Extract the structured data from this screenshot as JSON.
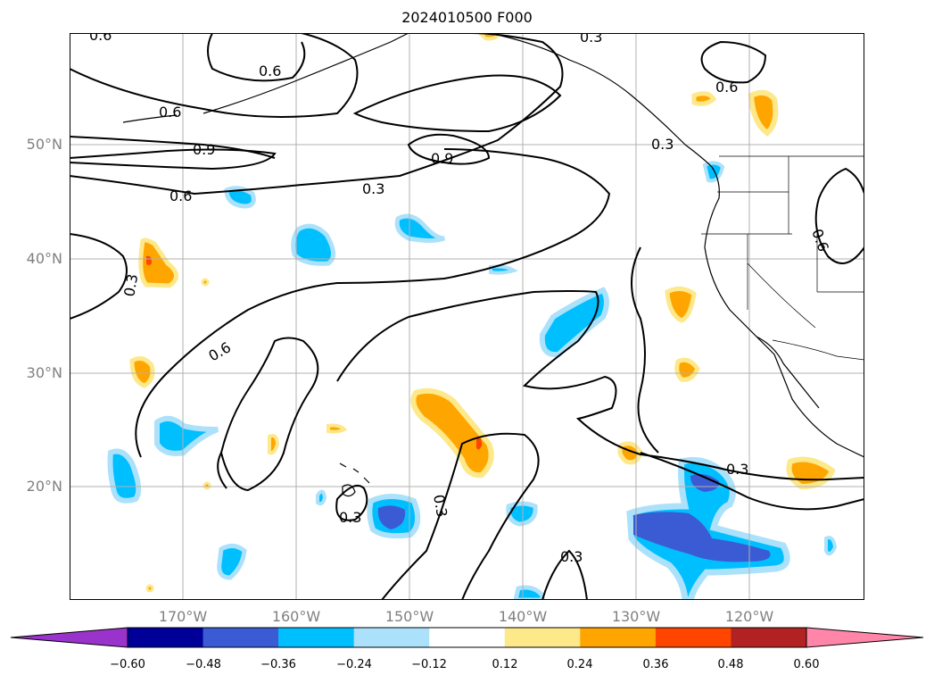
{
  "title": "2024010500 F000",
  "map": {
    "lat_labels": [
      "50°N",
      "40°N",
      "30°N",
      "20°N"
    ],
    "lon_labels": [
      "170°W",
      "160°W",
      "150°W",
      "140°W",
      "130°W",
      "120°W"
    ],
    "contour_labels": [
      "0.6",
      "0.6",
      "0.6",
      "0.9",
      "0.9",
      "0.6",
      "0.3",
      "0.3",
      "0.6",
      "0.3",
      "0.3",
      "0.3",
      "0.3",
      "0.3",
      "0.6",
      "0.6",
      "0.3"
    ]
  },
  "colorbar": {
    "ticks": [
      "−0.60",
      "−0.48",
      "−0.36",
      "−0.24",
      "−0.12",
      "0.12",
      "0.24",
      "0.36",
      "0.48",
      "0.60"
    ],
    "colors": [
      "#9933cc",
      "#000099",
      "#3b5bd4",
      "#00bfff",
      "#abe1fa",
      "#ffffff",
      "#fde88a",
      "#ffa500",
      "#ff4500",
      "#b22222",
      "#ff85a9"
    ]
  }
}
